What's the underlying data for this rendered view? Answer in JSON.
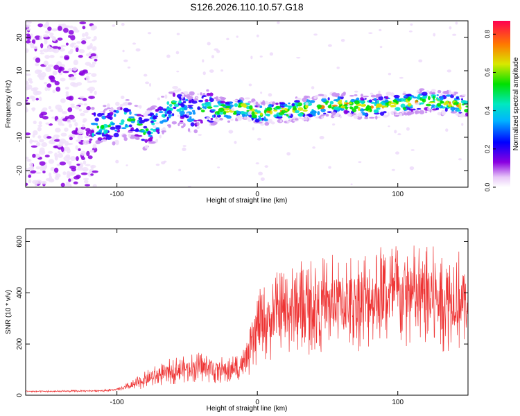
{
  "chart_data": [
    {
      "type": "heatmap",
      "title": "S126.2026.110.10.57.G18",
      "xlabel": "Height of straight line (km)",
      "ylabel": "Frequency (Hz)",
      "xlim": [
        -165,
        150
      ],
      "ylim": [
        -25,
        25
      ],
      "xticks": [
        -100,
        0,
        100
      ],
      "yticks": [
        -20,
        -10,
        0,
        10,
        20
      ],
      "colorbar": {
        "label": "Normalized spectral amplitude",
        "range": [
          0.0,
          0.87
        ],
        "ticks": [
          0.0,
          0.2,
          0.4,
          0.6,
          0.8
        ]
      },
      "frequency_trace": {
        "x": [
          -115,
          -100,
          -90,
          -80,
          -72,
          -65,
          -60,
          -55,
          -45,
          -35,
          -20,
          -10,
          0,
          20,
          40,
          60,
          80,
          100,
          120,
          140,
          150
        ],
        "y": [
          -7,
          -6,
          -4,
          -8,
          -6,
          -2,
          0,
          -1,
          -3,
          -1,
          -2,
          -1,
          -3,
          -2,
          -1,
          0,
          -1,
          0,
          1,
          0,
          -1
        ]
      }
    },
    {
      "type": "line",
      "xlabel": "Height of straight line (km)",
      "ylabel": "SNR (10 * v/v)",
      "xlim": [
        -165,
        150
      ],
      "ylim": [
        0,
        650
      ],
      "xticks": [
        -100,
        0,
        100
      ],
      "yticks": [
        0,
        200,
        400,
        600
      ],
      "series": [
        {
          "name": "SNR",
          "color": "#ee3333",
          "x": [
            -165,
            -140,
            -110,
            -100,
            -90,
            -80,
            -70,
            -60,
            -50,
            -40,
            -30,
            -20,
            -10,
            -5,
            0,
            10,
            20,
            30,
            40,
            60,
            80,
            100,
            120,
            140,
            150
          ],
          "y": [
            15,
            15,
            18,
            22,
            35,
            60,
            80,
            95,
            105,
            110,
            100,
            95,
            120,
            170,
            260,
            300,
            330,
            345,
            350,
            360,
            380,
            390,
            380,
            375,
            370
          ]
        }
      ]
    }
  ]
}
